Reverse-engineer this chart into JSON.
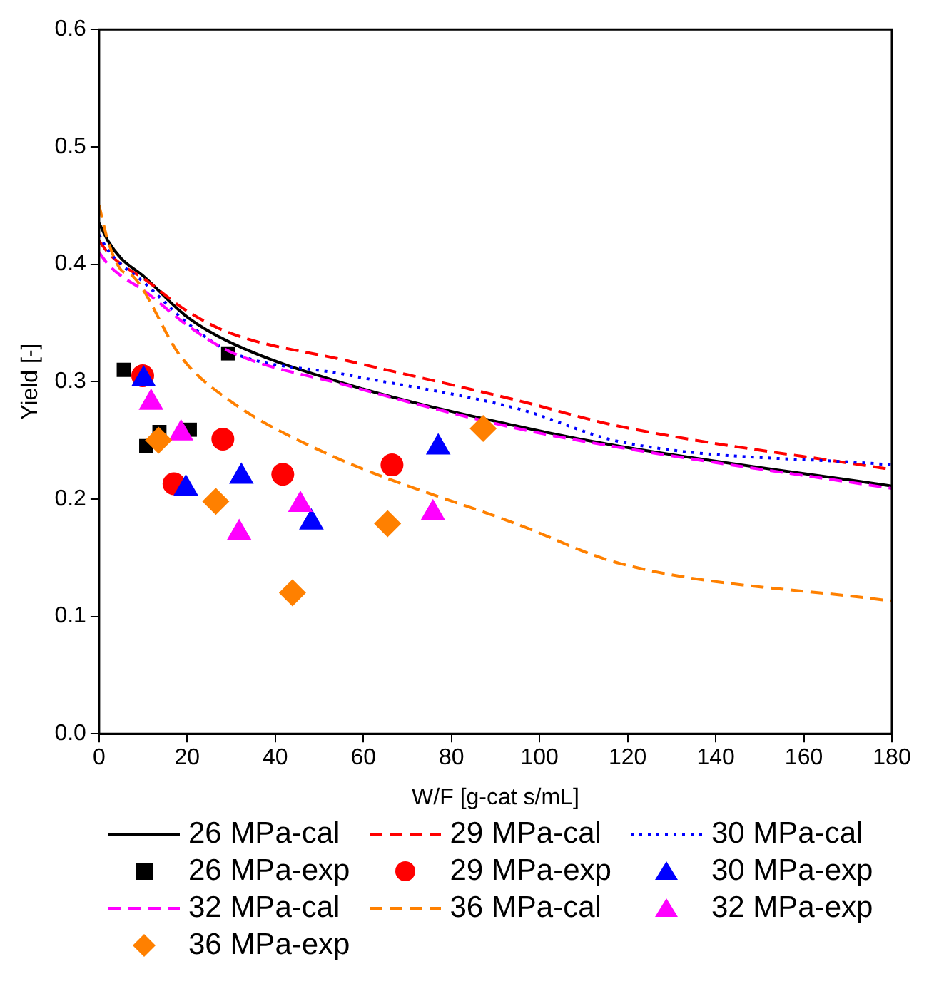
{
  "chart_data": {
    "type": "line",
    "xlabel": "W/F [g-cat s/mL]",
    "ylabel": "Yield [-]",
    "xlim": [
      0,
      180
    ],
    "xticks": [
      0,
      20,
      40,
      60,
      80,
      100,
      120,
      140,
      160,
      180
    ],
    "ylim": [
      0,
      0.6
    ],
    "yticks": [
      {
        "value": 0,
        "label": "0.0"
      },
      0.1,
      0.2,
      0.3,
      0.4,
      0.5,
      0.6
    ],
    "grid": false,
    "legend": "bottom",
    "series": [
      {
        "name": "26 MPa-cal",
        "type": "line",
        "line_style": "solid",
        "color": "#000000",
        "x": [
          0,
          2,
          5,
          10,
          20,
          30,
          56,
          95,
          118,
          180
        ],
        "values": [
          0.435,
          0.42,
          0.405,
          0.39,
          0.355,
          0.333,
          0.298,
          0.262,
          0.245,
          0.211
        ]
      },
      {
        "name": "29 MPa-cal",
        "type": "line",
        "line_style": "dashed",
        "color": "#ff0000",
        "x": [
          0,
          2,
          5,
          10,
          20,
          30,
          56,
          95,
          118,
          180
        ],
        "values": [
          0.42,
          0.41,
          0.4,
          0.388,
          0.36,
          0.341,
          0.318,
          0.284,
          0.262,
          0.225
        ]
      },
      {
        "name": "30 MPa-cal",
        "type": "line",
        "line_style": "dotted",
        "color": "#0000ff",
        "x": [
          0,
          2,
          5,
          10,
          20,
          30,
          56,
          95,
          118,
          180
        ],
        "values": [
          0.425,
          0.412,
          0.4,
          0.385,
          0.35,
          0.325,
          0.306,
          0.277,
          0.249,
          0.229
        ]
      },
      {
        "name": "26 MPa-exp",
        "type": "scatter",
        "marker": "square",
        "color": "#000000",
        "x": [
          5.6,
          10.7,
          13.7,
          20.6,
          29.3
        ],
        "values": [
          0.31,
          0.245,
          0.257,
          0.259,
          0.324
        ]
      },
      {
        "name": "29 MPa-exp",
        "type": "scatter",
        "marker": "circle",
        "color": "#ff0000",
        "x": [
          9.9,
          17,
          28.1,
          41.7,
          66.5
        ],
        "values": [
          0.305,
          0.213,
          0.251,
          0.221,
          0.229
        ]
      },
      {
        "name": "30 MPa-exp",
        "type": "scatter",
        "marker": "triangle",
        "color": "#0000ff",
        "x": [
          10.1,
          19.7,
          32.3,
          48.2,
          77
        ],
        "values": [
          0.302,
          0.209,
          0.219,
          0.18,
          0.244
        ]
      },
      {
        "name": "32 MPa-cal",
        "type": "line",
        "line_style": "dashed",
        "color": "#ff00ff",
        "x": [
          0,
          2,
          5,
          10,
          20,
          30,
          56,
          95,
          118,
          180
        ],
        "values": [
          0.41,
          0.4,
          0.39,
          0.378,
          0.348,
          0.325,
          0.297,
          0.26,
          0.244,
          0.209
        ]
      },
      {
        "name": "36 MPa-cal",
        "type": "line",
        "line_style": "dashed",
        "color": "#ff8000",
        "x": [
          0,
          2,
          5,
          7.6,
          18.6,
          29.6,
          51.5,
          95.3,
          118.3,
          180
        ],
        "values": [
          0.45,
          0.42,
          0.395,
          0.39,
          0.321,
          0.284,
          0.239,
          0.178,
          0.145,
          0.113
        ]
      },
      {
        "name": "32 MPa-exp",
        "type": "scatter",
        "marker": "triangle",
        "color": "#ff00ff",
        "x": [
          11.8,
          18.6,
          31.8,
          45.7,
          75.8
        ],
        "values": [
          0.282,
          0.256,
          0.171,
          0.195,
          0.188
        ]
      },
      {
        "name": "36 MPa-exp",
        "type": "scatter",
        "marker": "diamond",
        "color": "#ff8000",
        "x": [
          13.5,
          26.5,
          43.9,
          65.5,
          87.2
        ],
        "values": [
          0.25,
          0.198,
          0.12,
          0.179,
          0.26
        ]
      }
    ]
  }
}
